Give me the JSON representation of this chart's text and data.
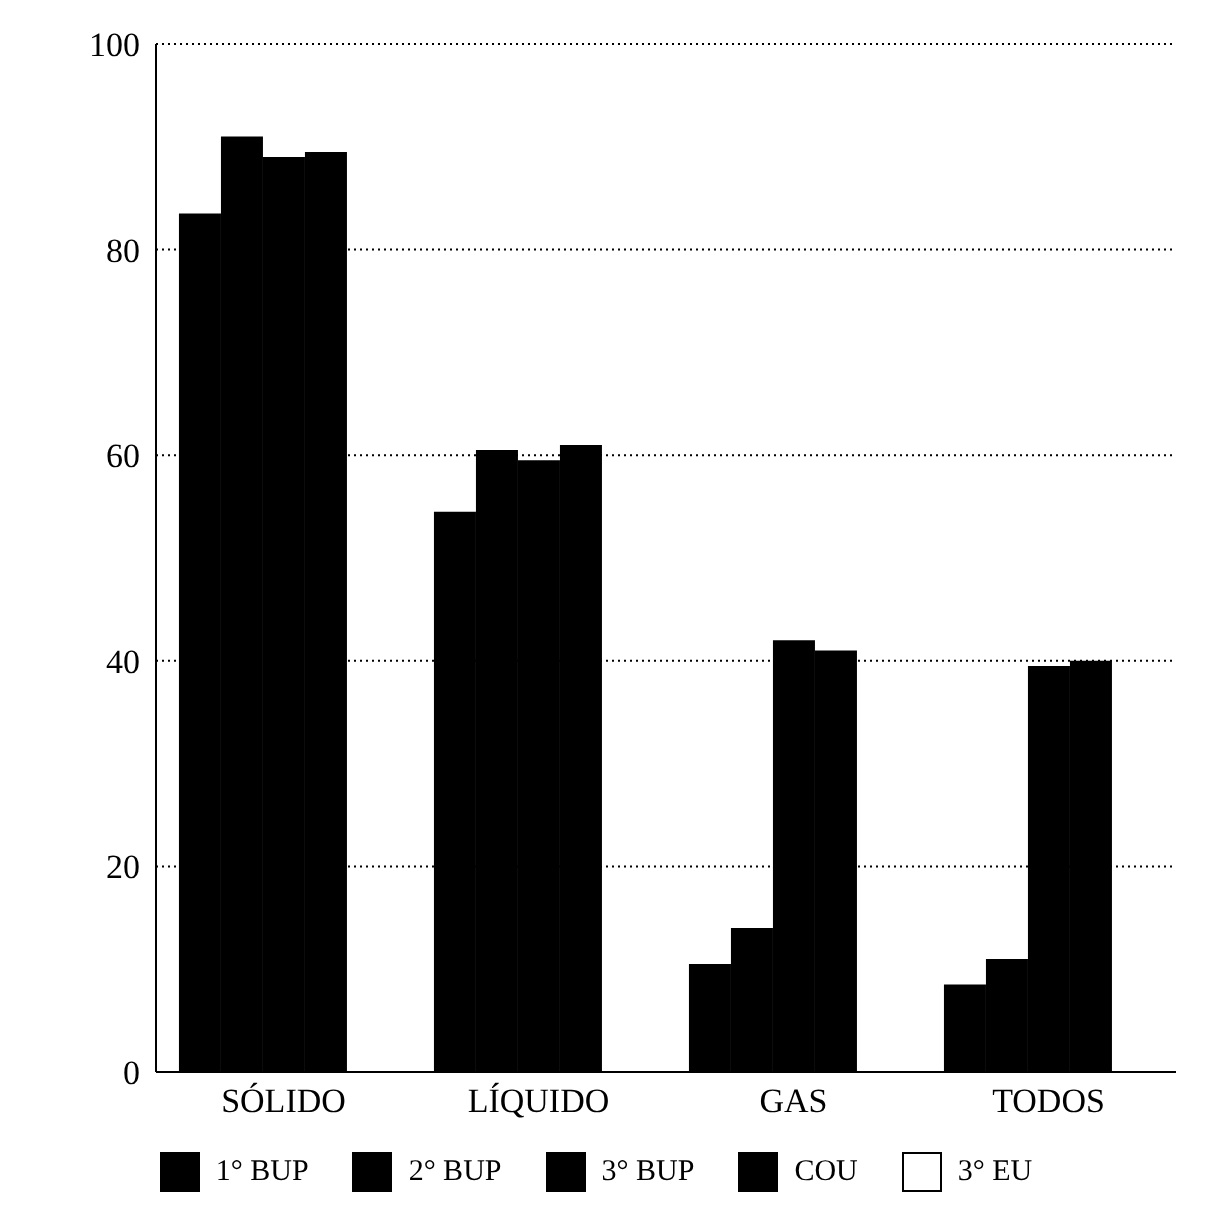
{
  "chart_data": {
    "type": "bar",
    "categories": [
      "SÓLIDO",
      "LÍQUIDO",
      "GAS",
      "TODOS"
    ],
    "series": [
      {
        "name": "1° BUP",
        "color": "#000000",
        "values": [
          83.5,
          54.5,
          10.5,
          8.5
        ]
      },
      {
        "name": "2° BUP",
        "color": "#000000",
        "values": [
          91,
          60.5,
          14,
          11
        ]
      },
      {
        "name": "3° BUP",
        "color": "#000000",
        "values": [
          89,
          59.5,
          42,
          39.5
        ]
      },
      {
        "name": "COU",
        "color": "#000000",
        "values": [
          89.5,
          61,
          41,
          40
        ]
      },
      {
        "name": "3° EU",
        "color": "#ffffff",
        "values": [
          null,
          null,
          null,
          null
        ]
      }
    ],
    "ylim": [
      0,
      100
    ],
    "yticks": [
      0,
      20,
      40,
      60,
      80,
      100
    ],
    "grid": "y",
    "legend": "bottom"
  }
}
